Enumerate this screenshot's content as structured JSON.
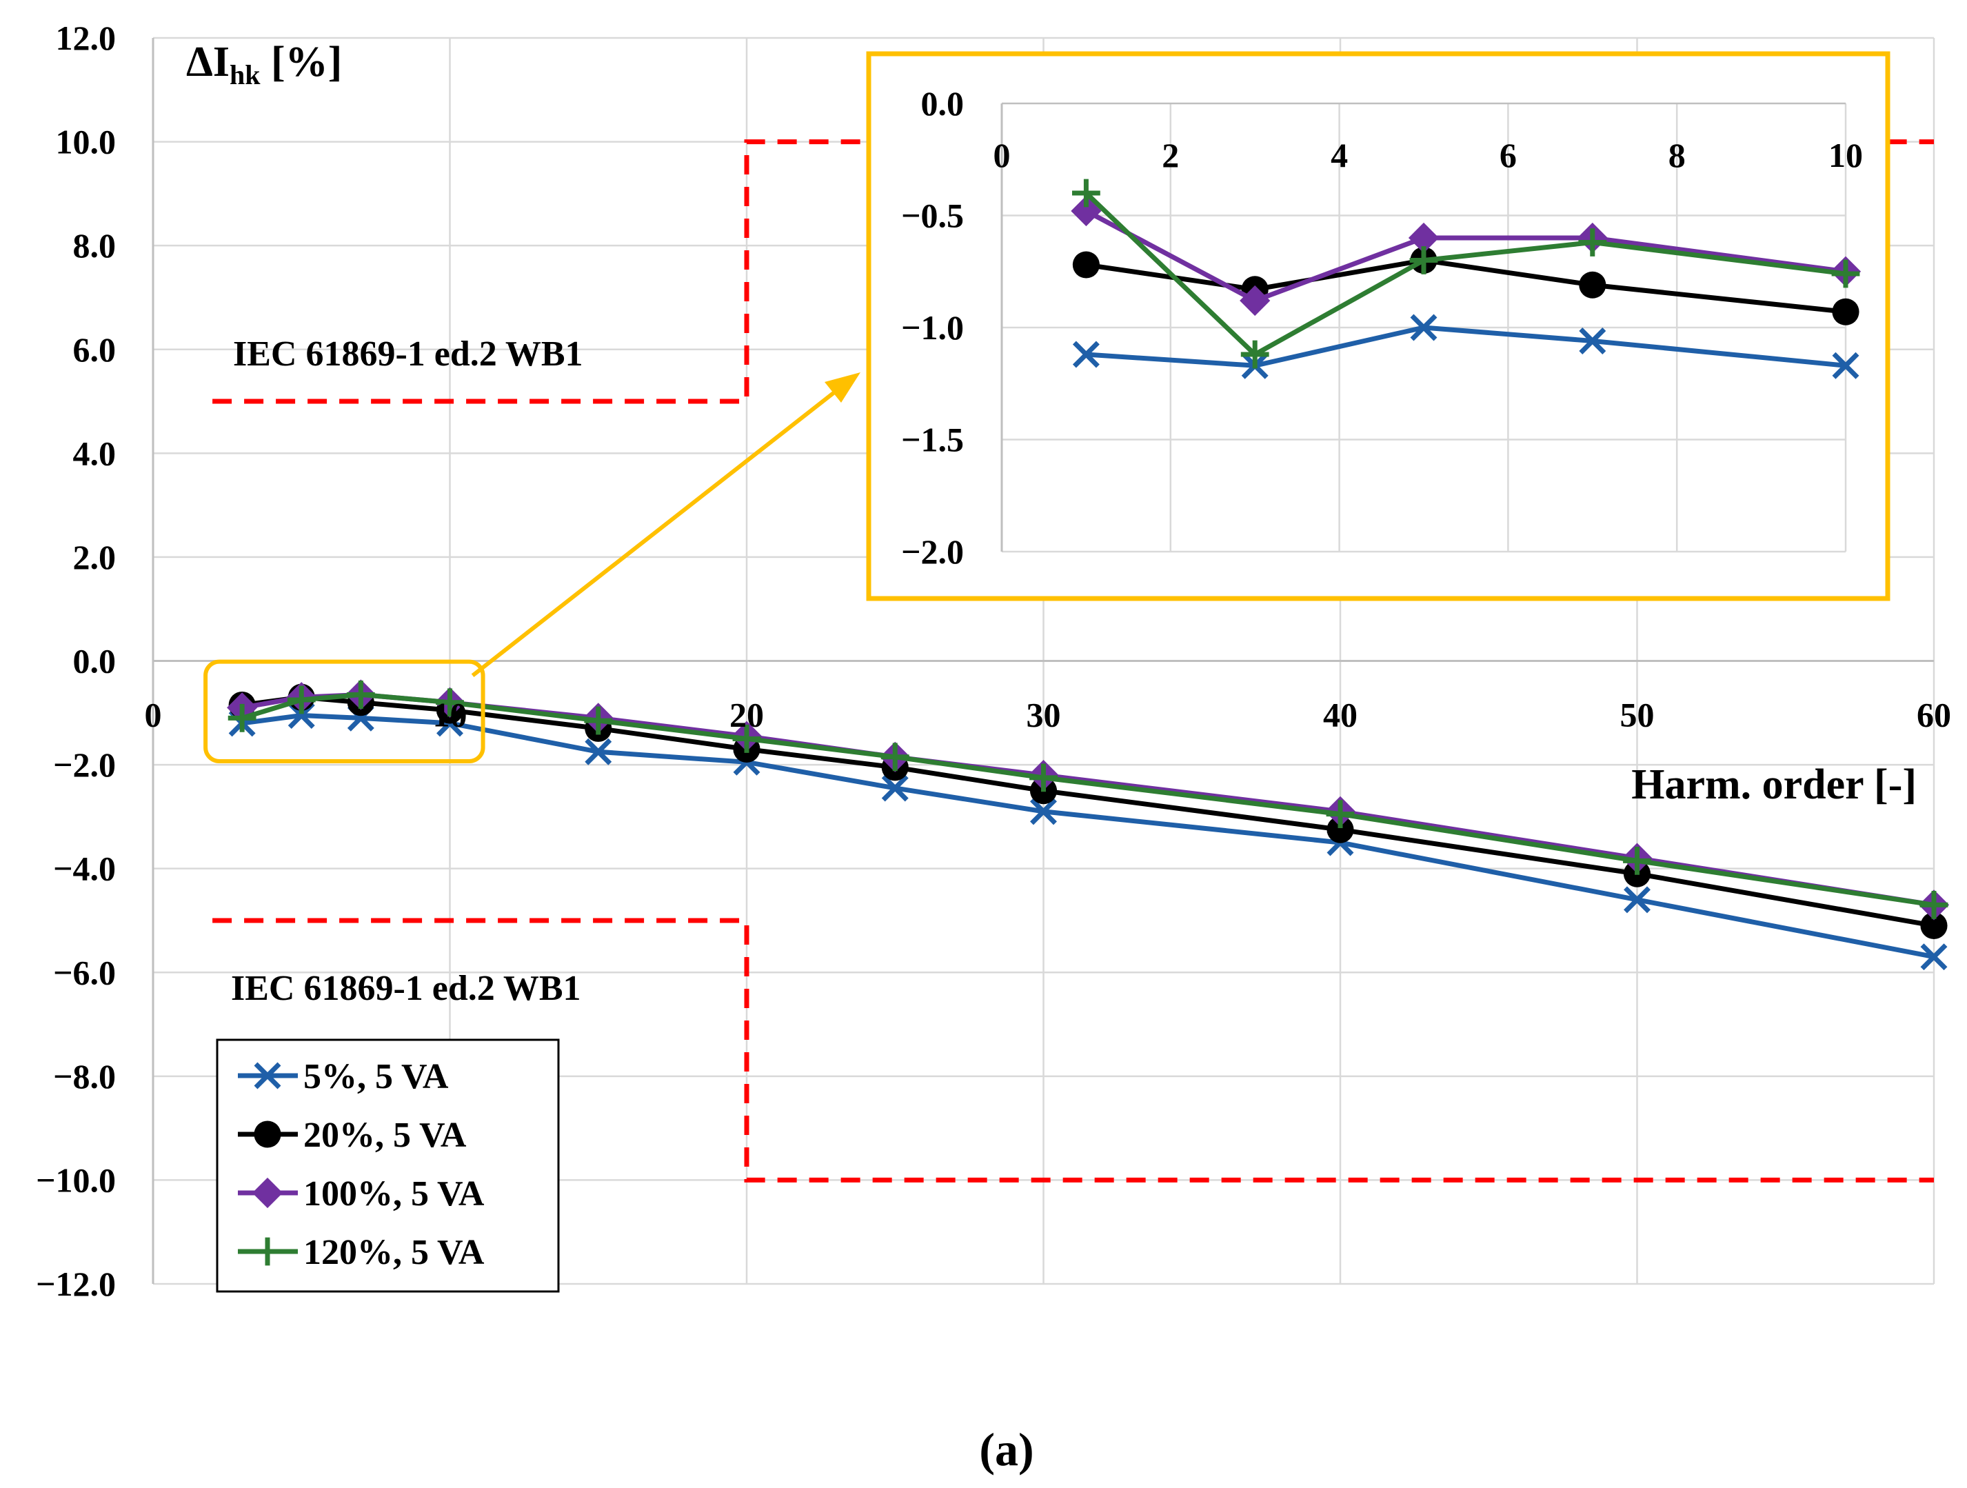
{
  "chart_data": [
    {
      "type": "line",
      "title": "",
      "ylabel_main": "ΔI",
      "ylabel_sub": "hk",
      "ylabel_unit": " [%]",
      "xlabel": "Harm. order [-]",
      "xlim": [
        0,
        60
      ],
      "ylim": [
        -12,
        12
      ],
      "xticks": [
        0,
        10,
        20,
        30,
        40,
        50,
        60
      ],
      "yticks": [
        "12.0",
        "10.0",
        "8.0",
        "6.0",
        "4.0",
        "2.0",
        "0.0",
        "−2.0",
        "−4.0",
        "−6.0",
        "−8.0",
        "−10.0",
        "−12.0"
      ],
      "yticks_values": [
        12,
        10,
        8,
        6,
        4,
        2,
        0,
        -2,
        -4,
        -6,
        -8,
        -10,
        -12
      ],
      "grid": true,
      "legend_position": "bottom-left",
      "x": [
        3,
        5,
        7,
        10,
        15,
        20,
        25,
        30,
        40,
        50,
        60
      ],
      "series": [
        {
          "name": "5%, 5 VA",
          "color": "#1f5fa8",
          "marker": "x",
          "values": [
            -1.2,
            -1.05,
            -1.1,
            -1.2,
            -1.75,
            -1.95,
            -2.45,
            -2.9,
            -3.5,
            -4.6,
            -5.7
          ]
        },
        {
          "name": "20%, 5 VA",
          "color": "#000000",
          "marker": "circle",
          "values": [
            -0.85,
            -0.7,
            -0.8,
            -0.95,
            -1.3,
            -1.7,
            -2.05,
            -2.5,
            -3.25,
            -4.1,
            -5.1
          ]
        },
        {
          "name": "100%, 5 VA",
          "color": "#7030a0",
          "marker": "diamond",
          "values": [
            -0.9,
            -0.7,
            -0.65,
            -0.8,
            -1.1,
            -1.45,
            -1.85,
            -2.2,
            -2.9,
            -3.8,
            -4.7
          ]
        },
        {
          "name": "120%, 5 VA",
          "color": "#2e7d32",
          "marker": "plus",
          "values": [
            -1.1,
            -0.75,
            -0.65,
            -0.8,
            -1.15,
            -1.5,
            -1.85,
            -2.25,
            -2.95,
            -3.85,
            -4.7
          ]
        }
      ],
      "limits": {
        "color": "#ff0000",
        "label_upper": "IEC 61869-1 ed.2 WB1",
        "label_lower": "IEC 61869-1 ed.2 WB1",
        "upper": [
          {
            "x": [
              2,
              20
            ],
            "y": 5
          },
          {
            "x": [
              20,
              60
            ],
            "y": 10
          }
        ],
        "lower": [
          {
            "x": [
              2,
              20
            ],
            "y": -5
          },
          {
            "x": [
              20,
              60
            ],
            "y": -10
          }
        ]
      },
      "zoom_box_x": [
        2,
        11
      ],
      "zoom_box_y": [
        -1.8,
        0.25
      ],
      "highlight_color": "#ffc000",
      "caption": "(a)"
    },
    {
      "type": "line",
      "title": "inset",
      "xlim": [
        0,
        10
      ],
      "ylim": [
        -2,
        0
      ],
      "xticks": [
        0,
        2,
        4,
        6,
        8,
        10
      ],
      "yticks": [
        "0.0",
        "−0.5",
        "−1.0",
        "−1.5",
        "−2.0"
      ],
      "yticks_values": [
        0,
        -0.5,
        -1,
        -1.5,
        -2
      ],
      "x": [
        1,
        3,
        5,
        7,
        10
      ],
      "series": [
        {
          "name": "5%, 5 VA",
          "values": [
            -1.12,
            -1.17,
            -1.0,
            -1.06,
            -1.17
          ]
        },
        {
          "name": "20%, 5 VA",
          "values": [
            -0.72,
            -0.83,
            -0.7,
            -0.81,
            -0.93
          ]
        },
        {
          "name": "100%, 5 VA",
          "values": [
            -0.48,
            -0.88,
            -0.6,
            -0.6,
            -0.75
          ]
        },
        {
          "name": "120%, 5 VA",
          "values": [
            -0.4,
            -1.12,
            -0.7,
            -0.62,
            -0.76
          ]
        }
      ]
    }
  ]
}
